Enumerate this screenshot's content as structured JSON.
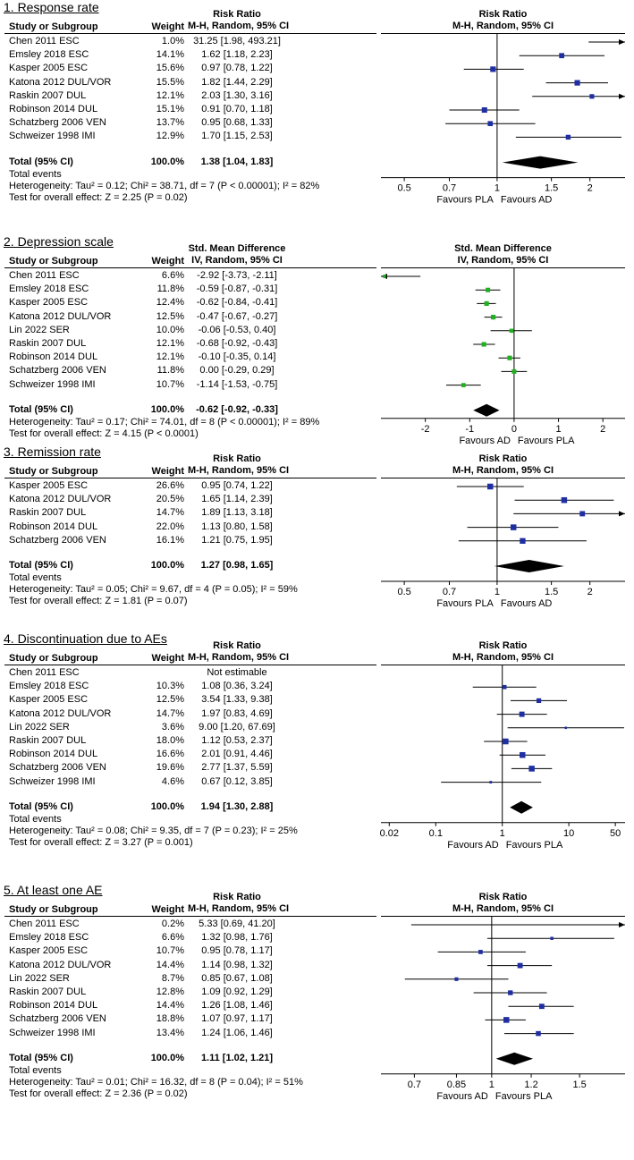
{
  "chart_data": [
    {
      "type": "forest",
      "title": "1. Response rate",
      "measure": "Risk Ratio",
      "method": "M-H, Random, 95% CI",
      "col_study": "Study or Subgroup",
      "col_weight": "Weight",
      "scale": "log",
      "xlim": [
        0.42,
        2.6
      ],
      "ticks": [
        {
          "v": 0.5,
          "label": "0.5"
        },
        {
          "v": 0.7,
          "label": "0.7"
        },
        {
          "v": 1,
          "label": "1"
        },
        {
          "v": 1.5,
          "label": "1.5"
        },
        {
          "v": 2,
          "label": "2"
        }
      ],
      "favours_left": "Favours PLA",
      "favours_right": "Favours AD",
      "studies": [
        {
          "name": "Chen 2011 ESC",
          "weight": "1.0%",
          "ci": "31.25 [1.98, 493.21]",
          "est": 31.25,
          "lo": 1.98,
          "hi": 493.21
        },
        {
          "name": "Emsley 2018 ESC",
          "weight": "14.1%",
          "ci": "1.62 [1.18, 2.23]",
          "est": 1.62,
          "lo": 1.18,
          "hi": 2.23
        },
        {
          "name": "Kasper 2005 ESC",
          "weight": "15.6%",
          "ci": "0.97 [0.78, 1.22]",
          "est": 0.97,
          "lo": 0.78,
          "hi": 1.22
        },
        {
          "name": "Katona 2012 DUL/VOR",
          "weight": "15.5%",
          "ci": "1.82 [1.44, 2.29]",
          "est": 1.82,
          "lo": 1.44,
          "hi": 2.29
        },
        {
          "name": "Raskin 2007 DUL",
          "weight": "12.1%",
          "ci": "2.03 [1.30, 3.16]",
          "est": 2.03,
          "lo": 1.3,
          "hi": 3.16
        },
        {
          "name": "Robinson 2014 DUL",
          "weight": "15.1%",
          "ci": "0.91 [0.70, 1.18]",
          "est": 0.91,
          "lo": 0.7,
          "hi": 1.18
        },
        {
          "name": "Schatzberg 2006 VEN",
          "weight": "13.7%",
          "ci": "0.95 [0.68, 1.33]",
          "est": 0.95,
          "lo": 0.68,
          "hi": 1.33
        },
        {
          "name": "Schweizer 1998 IMI",
          "weight": "12.9%",
          "ci": "1.70 [1.15, 2.53]",
          "est": 1.7,
          "lo": 1.15,
          "hi": 2.53
        }
      ],
      "total": {
        "name": "Total (95% CI)",
        "weight": "100.0%",
        "ci": "1.38 [1.04, 1.83]",
        "est": 1.38,
        "lo": 1.04,
        "hi": 1.83
      },
      "total_events": "Total events",
      "heterogeneity": "Heterogeneity: Tau² = 0.12; Chi² = 38.71, df = 7 (P < 0.00001); I² = 82%",
      "overall": "Test for overall effect: Z = 2.25 (P = 0.02)",
      "marker_color": "#1f2fa3"
    },
    {
      "type": "forest",
      "title": "2. Depression scale",
      "measure": "Std. Mean Difference",
      "method": "IV, Random, 95% CI",
      "col_study": "Study or Subgroup",
      "col_weight": "Weight",
      "scale": "linear",
      "xlim": [
        -3.0,
        2.5
      ],
      "ticks": [
        {
          "v": -2,
          "label": "-2"
        },
        {
          "v": -1,
          "label": "-1"
        },
        {
          "v": 0,
          "label": "0"
        },
        {
          "v": 1,
          "label": "1"
        },
        {
          "v": 2,
          "label": "2"
        }
      ],
      "favours_left": "Favours AD",
      "favours_right": "Favours PLA",
      "studies": [
        {
          "name": "Chen 2011 ESC",
          "weight": "6.6%",
          "ci": "-2.92 [-3.73, -2.11]",
          "est": -2.92,
          "lo": -3.73,
          "hi": -2.11
        },
        {
          "name": "Emsley 2018 ESC",
          "weight": "11.8%",
          "ci": "-0.59 [-0.87, -0.31]",
          "est": -0.59,
          "lo": -0.87,
          "hi": -0.31
        },
        {
          "name": "Kasper 2005 ESC",
          "weight": "12.4%",
          "ci": "-0.62 [-0.84, -0.41]",
          "est": -0.62,
          "lo": -0.84,
          "hi": -0.41
        },
        {
          "name": "Katona 2012 DUL/VOR",
          "weight": "12.5%",
          "ci": "-0.47 [-0.67, -0.27]",
          "est": -0.47,
          "lo": -0.67,
          "hi": -0.27
        },
        {
          "name": "Lin 2022 SER",
          "weight": "10.0%",
          "ci": "-0.06 [-0.53, 0.40]",
          "est": -0.06,
          "lo": -0.53,
          "hi": 0.4
        },
        {
          "name": "Raskin 2007 DUL",
          "weight": "12.1%",
          "ci": "-0.68 [-0.92, -0.43]",
          "est": -0.68,
          "lo": -0.92,
          "hi": -0.43
        },
        {
          "name": "Robinson 2014 DUL",
          "weight": "12.1%",
          "ci": "-0.10 [-0.35, 0.14]",
          "est": -0.1,
          "lo": -0.35,
          "hi": 0.14
        },
        {
          "name": "Schatzberg 2006 VEN",
          "weight": "11.8%",
          "ci": "0.00 [-0.29, 0.29]",
          "est": 0.0,
          "lo": -0.29,
          "hi": 0.29
        },
        {
          "name": "Schweizer 1998 IMI",
          "weight": "10.7%",
          "ci": "-1.14 [-1.53, -0.75]",
          "est": -1.14,
          "lo": -1.53,
          "hi": -0.75
        }
      ],
      "total": {
        "name": "Total (95% CI)",
        "weight": "100.0%",
        "ci": "-0.62 [-0.92, -0.33]",
        "est": -0.62,
        "lo": -0.92,
        "hi": -0.33
      },
      "total_events": "",
      "heterogeneity": "Heterogeneity: Tau² = 0.17; Chi² = 74.01, df = 8 (P < 0.00001); I² = 89%",
      "overall": "Test for overall effect: Z = 4.15 (P < 0.0001)",
      "marker_color": "#22b022"
    },
    {
      "type": "forest",
      "title": "3. Remission rate",
      "measure": "Risk Ratio",
      "method": "M-H, Random, 95% CI",
      "col_study": "Study or Subgroup",
      "col_weight": "Weight",
      "scale": "log",
      "xlim": [
        0.42,
        2.6
      ],
      "ticks": [
        {
          "v": 0.5,
          "label": "0.5"
        },
        {
          "v": 0.7,
          "label": "0.7"
        },
        {
          "v": 1,
          "label": "1"
        },
        {
          "v": 1.5,
          "label": "1.5"
        },
        {
          "v": 2,
          "label": "2"
        }
      ],
      "favours_left": "Favours PLA",
      "favours_right": "Favours AD",
      "studies": [
        {
          "name": "Kasper 2005 ESC",
          "weight": "26.6%",
          "ci": "0.95 [0.74, 1.22]",
          "est": 0.95,
          "lo": 0.74,
          "hi": 1.22
        },
        {
          "name": "Katona 2012 DUL/VOR",
          "weight": "20.5%",
          "ci": "1.65 [1.14, 2.39]",
          "est": 1.65,
          "lo": 1.14,
          "hi": 2.39
        },
        {
          "name": "Raskin 2007 DUL",
          "weight": "14.7%",
          "ci": "1.89 [1.13, 3.18]",
          "est": 1.89,
          "lo": 1.13,
          "hi": 3.18
        },
        {
          "name": "Robinson 2014 DUL",
          "weight": "22.0%",
          "ci": "1.13 [0.80, 1.58]",
          "est": 1.13,
          "lo": 0.8,
          "hi": 1.58
        },
        {
          "name": "Schatzberg 2006 VEN",
          "weight": "16.1%",
          "ci": "1.21 [0.75, 1.95]",
          "est": 1.21,
          "lo": 0.75,
          "hi": 1.95
        }
      ],
      "total": {
        "name": "Total (95% CI)",
        "weight": "100.0%",
        "ci": "1.27 [0.98, 1.65]",
        "est": 1.27,
        "lo": 0.98,
        "hi": 1.65
      },
      "total_events": "Total events",
      "heterogeneity": "Heterogeneity: Tau² = 0.05; Chi² = 9.67, df = 4 (P = 0.05); I² = 59%",
      "overall": "Test for overall effect: Z = 1.81 (P = 0.07)",
      "marker_color": "#1f2fa3"
    },
    {
      "type": "forest",
      "title": "4. Discontinuation due to AEs",
      "measure": "Risk Ratio",
      "method": "M-H, Random, 95% CI",
      "col_study": "Study or Subgroup",
      "col_weight": "Weight",
      "scale": "log",
      "xlim": [
        0.015,
        70
      ],
      "ticks": [
        {
          "v": 0.02,
          "label": "0.02"
        },
        {
          "v": 0.1,
          "label": "0.1"
        },
        {
          "v": 1,
          "label": "1"
        },
        {
          "v": 10,
          "label": "10"
        },
        {
          "v": 50,
          "label": "50"
        }
      ],
      "favours_left": "Favours AD",
      "favours_right": "Favours PLA",
      "studies": [
        {
          "name": "Chen 2011 ESC",
          "weight": "",
          "ci": "Not estimable"
        },
        {
          "name": "Emsley 2018 ESC",
          "weight": "10.3%",
          "ci": "1.08 [0.36, 3.24]",
          "est": 1.08,
          "lo": 0.36,
          "hi": 3.24
        },
        {
          "name": "Kasper 2005 ESC",
          "weight": "12.5%",
          "ci": "3.54 [1.33, 9.38]",
          "est": 3.54,
          "lo": 1.33,
          "hi": 9.38
        },
        {
          "name": "Katona 2012 DUL/VOR",
          "weight": "14.7%",
          "ci": "1.97 [0.83, 4.69]",
          "est": 1.97,
          "lo": 0.83,
          "hi": 4.69
        },
        {
          "name": "Lin 2022 SER",
          "weight": "3.6%",
          "ci": "9.00 [1.20, 67.69]",
          "est": 9.0,
          "lo": 1.2,
          "hi": 67.69
        },
        {
          "name": "Raskin 2007 DUL",
          "weight": "18.0%",
          "ci": "1.12 [0.53, 2.37]",
          "est": 1.12,
          "lo": 0.53,
          "hi": 2.37
        },
        {
          "name": "Robinson 2014 DUL",
          "weight": "16.6%",
          "ci": "2.01 [0.91, 4.46]",
          "est": 2.01,
          "lo": 0.91,
          "hi": 4.46
        },
        {
          "name": "Schatzberg 2006 VEN",
          "weight": "19.6%",
          "ci": "2.77 [1.37, 5.59]",
          "est": 2.77,
          "lo": 1.37,
          "hi": 5.59
        },
        {
          "name": "Schweizer 1998 IMI",
          "weight": "4.6%",
          "ci": "0.67 [0.12, 3.85]",
          "est": 0.67,
          "lo": 0.12,
          "hi": 3.85
        }
      ],
      "total": {
        "name": "Total (95% CI)",
        "weight": "100.0%",
        "ci": "1.94 [1.30, 2.88]",
        "est": 1.94,
        "lo": 1.3,
        "hi": 2.88
      },
      "total_events": "Total events",
      "heterogeneity": "Heterogeneity: Tau² = 0.08; Chi² = 9.35, df = 7 (P = 0.23); I² = 25%",
      "overall": "Test for overall effect: Z = 3.27 (P = 0.001)",
      "marker_color": "#1f2fa3"
    },
    {
      "type": "forest",
      "title": "5. At least one AE",
      "measure": "Risk Ratio",
      "method": "M-H, Random, 95% CI",
      "col_study": "Study or Subgroup",
      "col_weight": "Weight",
      "scale": "log",
      "xlim": [
        0.6,
        1.85
      ],
      "ticks": [
        {
          "v": 0.7,
          "label": "0.7"
        },
        {
          "v": 0.85,
          "label": "0.85"
        },
        {
          "v": 1,
          "label": "1"
        },
        {
          "v": 1.2,
          "label": "1.2"
        },
        {
          "v": 1.5,
          "label": "1.5"
        }
      ],
      "favours_left": "Favours AD",
      "favours_right": "Favours PLA",
      "studies": [
        {
          "name": "Chen 2011 ESC",
          "weight": "0.2%",
          "ci": "5.33 [0.69, 41.20]",
          "est": 5.33,
          "lo": 0.69,
          "hi": 41.2
        },
        {
          "name": "Emsley 2018 ESC",
          "weight": "6.6%",
          "ci": "1.32 [0.98, 1.76]",
          "est": 1.32,
          "lo": 0.98,
          "hi": 1.76
        },
        {
          "name": "Kasper 2005 ESC",
          "weight": "10.7%",
          "ci": "0.95 [0.78, 1.17]",
          "est": 0.95,
          "lo": 0.78,
          "hi": 1.17
        },
        {
          "name": "Katona 2012 DUL/VOR",
          "weight": "14.4%",
          "ci": "1.14 [0.98, 1.32]",
          "est": 1.14,
          "lo": 0.98,
          "hi": 1.32
        },
        {
          "name": "Lin 2022 SER",
          "weight": "8.7%",
          "ci": "0.85 [0.67, 1.08]",
          "est": 0.85,
          "lo": 0.67,
          "hi": 1.08
        },
        {
          "name": "Raskin 2007 DUL",
          "weight": "12.8%",
          "ci": "1.09 [0.92, 1.29]",
          "est": 1.09,
          "lo": 0.92,
          "hi": 1.29
        },
        {
          "name": "Robinson 2014 DUL",
          "weight": "14.4%",
          "ci": "1.26 [1.08, 1.46]",
          "est": 1.26,
          "lo": 1.08,
          "hi": 1.46
        },
        {
          "name": "Schatzberg 2006 VEN",
          "weight": "18.8%",
          "ci": "1.07 [0.97, 1.17]",
          "est": 1.07,
          "lo": 0.97,
          "hi": 1.17
        },
        {
          "name": "Schweizer 1998 IMI",
          "weight": "13.4%",
          "ci": "1.24 [1.06, 1.46]",
          "est": 1.24,
          "lo": 1.06,
          "hi": 1.46
        }
      ],
      "total": {
        "name": "Total (95% CI)",
        "weight": "100.0%",
        "ci": "1.11 [1.02, 1.21]",
        "est": 1.11,
        "lo": 1.02,
        "hi": 1.21
      },
      "total_events": "Total events",
      "heterogeneity": "Heterogeneity: Tau² = 0.01; Chi² = 16.32, df = 8 (P = 0.04); I² = 51%",
      "overall": "Test for overall effect: Z = 2.36 (P = 0.02)",
      "marker_color": "#1f2fa3"
    }
  ]
}
